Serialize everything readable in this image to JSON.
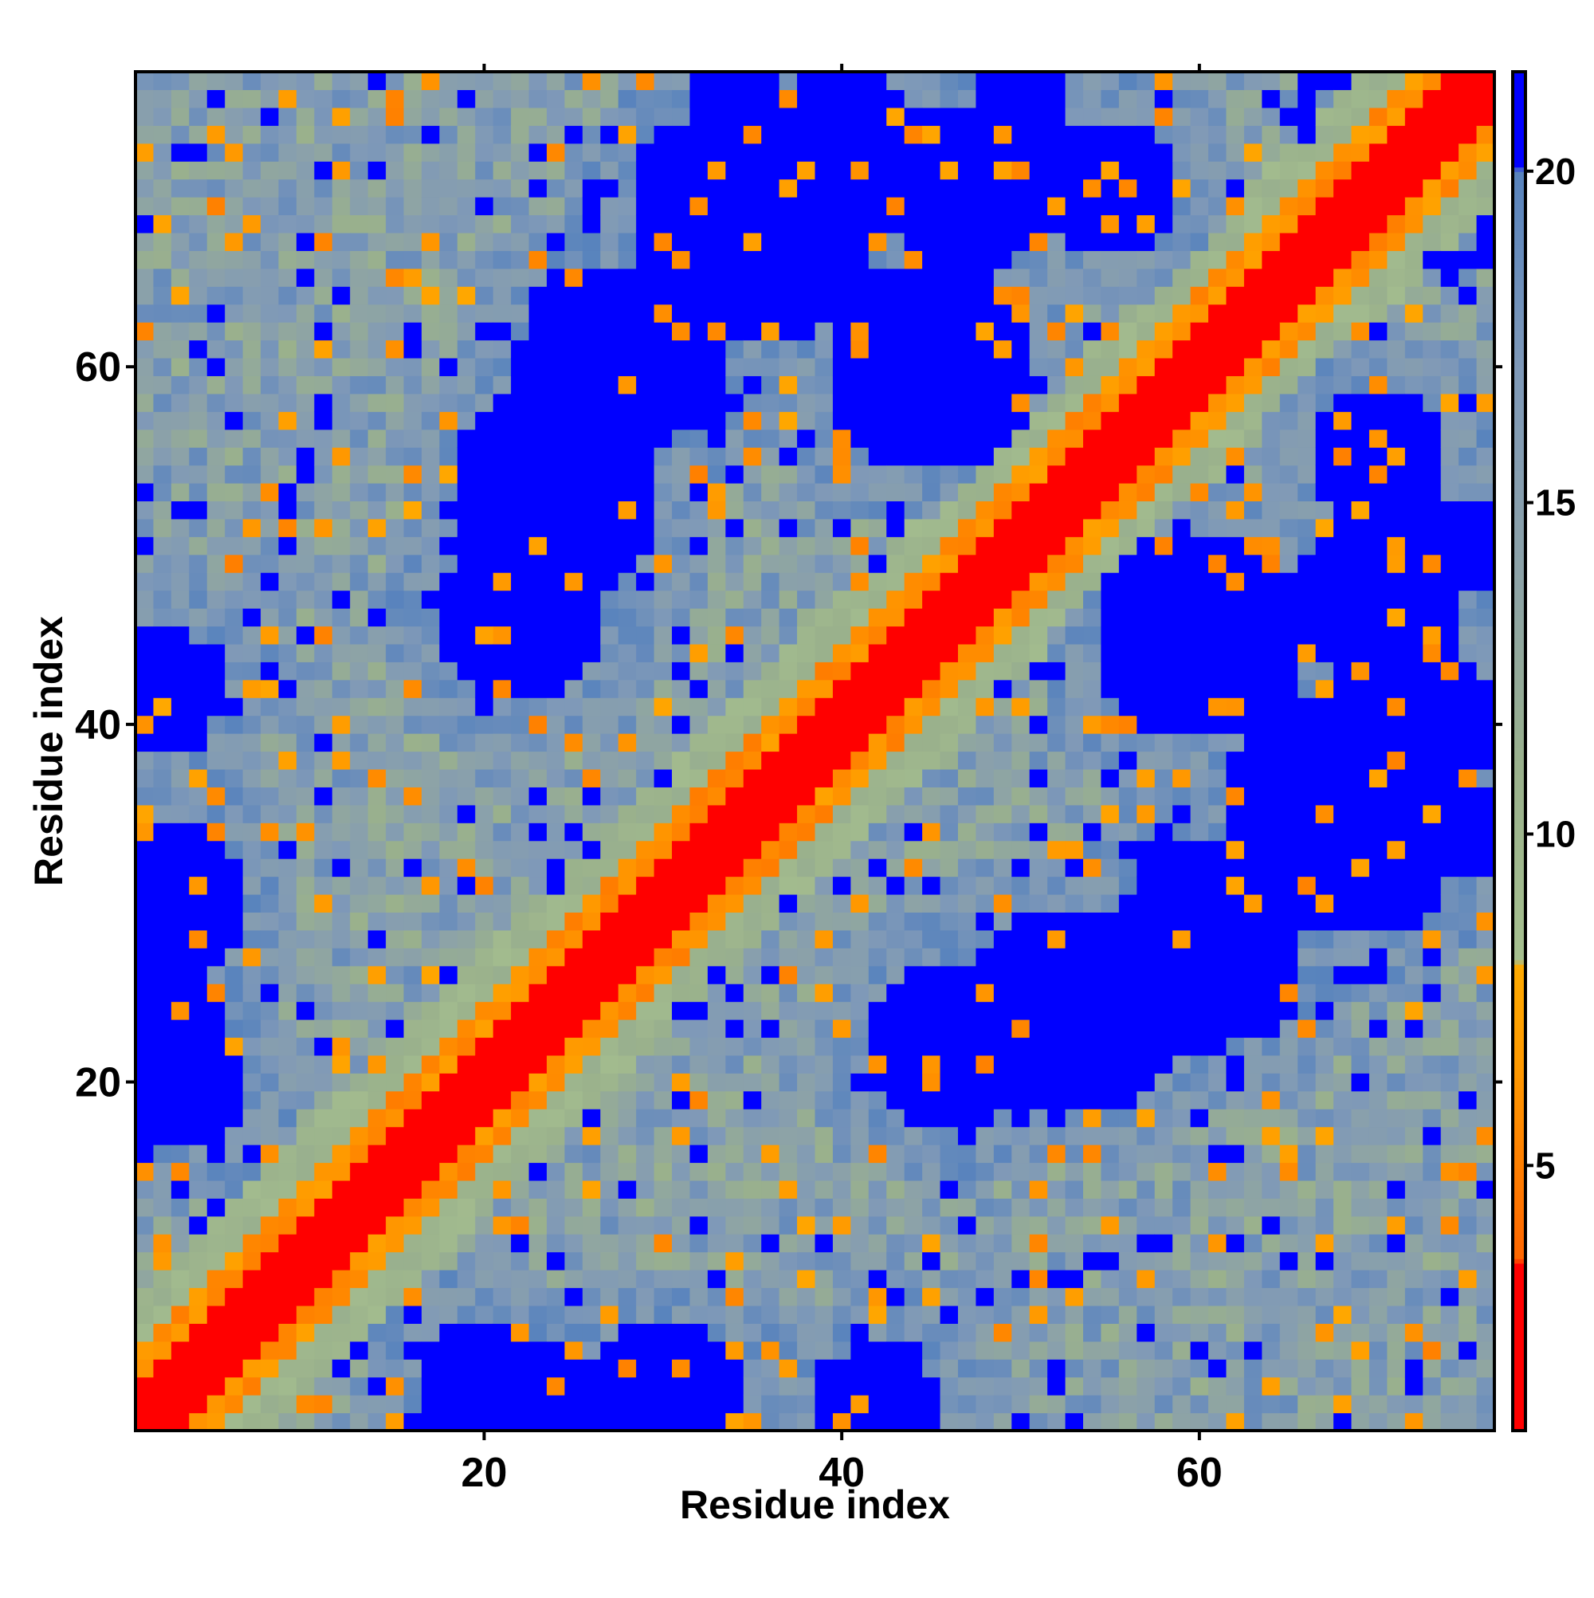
{
  "chart_data": {
    "type": "heatmap",
    "title": "",
    "xlabel": "Residue index",
    "ylabel": "Residue index",
    "x_range": [
      1,
      76
    ],
    "y_range": [
      1,
      76
    ],
    "x_ticks": [
      20,
      40,
      60
    ],
    "y_ticks": [
      20,
      40,
      60
    ],
    "x_tick_labels": [
      "20",
      "40",
      "60"
    ],
    "y_tick_labels": [
      "20",
      "40",
      "60"
    ],
    "grid": false,
    "colorbar": {
      "placement": "right",
      "range": [
        1,
        21.5
      ],
      "ticks": [
        5,
        10,
        15,
        20
      ],
      "tick_labels": [
        "5",
        "10",
        "15",
        "20"
      ],
      "stops": [
        {
          "value": 1,
          "color": "#ff0000"
        },
        {
          "value": 3.5,
          "color": "#ff0000"
        },
        {
          "value": 3.6,
          "color": "#ff6600"
        },
        {
          "value": 6.5,
          "color": "#ff9900"
        },
        {
          "value": 8.0,
          "color": "#ffaa00"
        },
        {
          "value": 8.1,
          "color": "#a6c08f"
        },
        {
          "value": 11,
          "color": "#9ab18c"
        },
        {
          "value": 14,
          "color": "#8ca2a8"
        },
        {
          "value": 17,
          "color": "#7f99b8"
        },
        {
          "value": 20,
          "color": "#5883bd"
        },
        {
          "value": 20.1,
          "color": "#0000ff"
        },
        {
          "value": 21.5,
          "color": "#0000ff"
        }
      ]
    },
    "description_of_matrix": "symmetric residue distance map",
    "matrix_size": 76
  }
}
